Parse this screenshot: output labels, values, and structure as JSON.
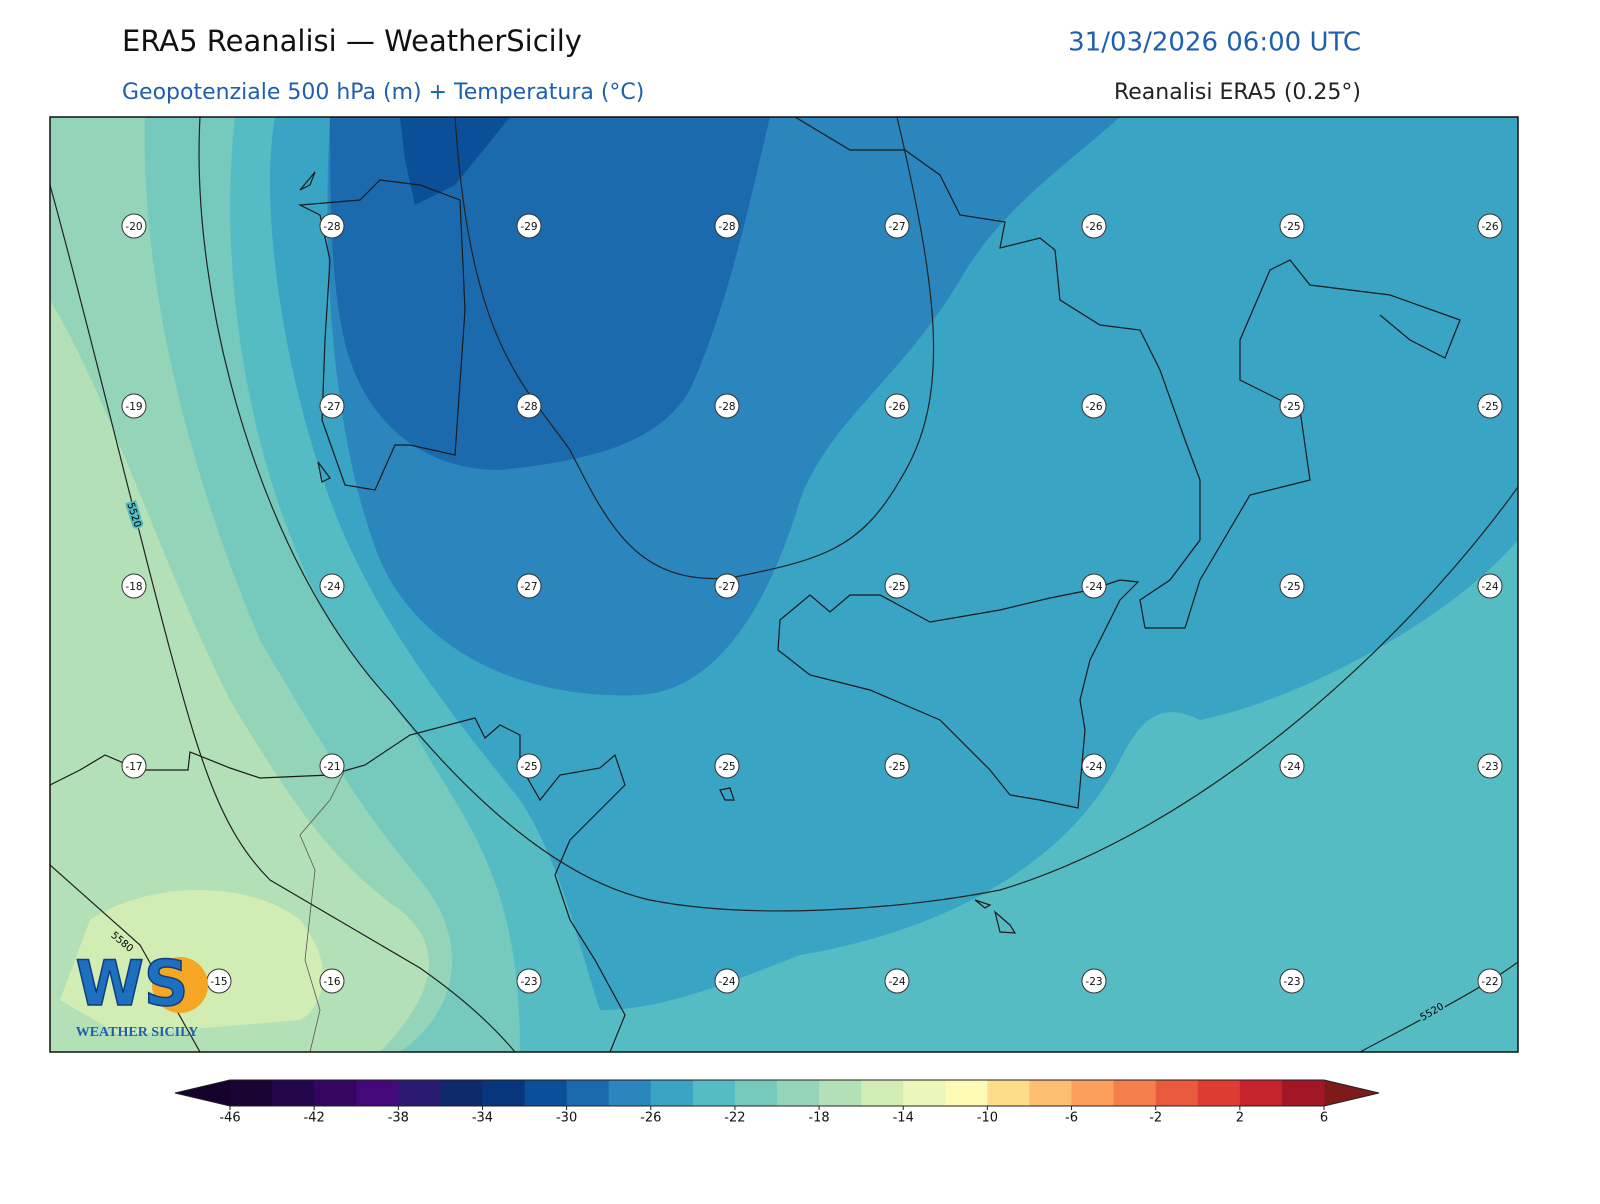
{
  "header": {
    "title": "ERA5 Reanalisi — WeatherSicily",
    "datetime": "31/03/2026 06:00 UTC",
    "subtitle": "Geopotenziale 500 hPa (m) + Temperatura (°C)",
    "source": "Reanalisi ERA5 (0.25°)"
  },
  "map": {
    "temperatures": [
      [
        -20,
        -28,
        -29,
        -28,
        -27,
        -26,
        -25,
        -26
      ],
      [
        -19,
        -27,
        -28,
        -28,
        -26,
        -26,
        -25,
        -25
      ],
      [
        -18,
        -24,
        -27,
        -27,
        -25,
        -24,
        -25,
        -24
      ],
      [
        -17,
        -21,
        -25,
        -25,
        -25,
        -24,
        -24,
        -23
      ],
      [
        -15,
        -16,
        -23,
        -24,
        -24,
        -23,
        -23,
        -22
      ]
    ],
    "contour_labels": [
      "5520",
      "5580",
      "5520"
    ]
  },
  "logo": {
    "initials": "WS",
    "name": "WEATHER SICILY"
  },
  "colorbar": {
    "range": [
      -46,
      6
    ],
    "ticks": [
      -46,
      -42,
      -38,
      -34,
      -30,
      -26,
      -22,
      -18,
      -14,
      -10,
      -6,
      -2,
      2,
      6
    ],
    "colors": [
      "#1a0433",
      "#24064a",
      "#34065f",
      "#44087a",
      "#2a1970",
      "#0f2a6b",
      "#08367d",
      "#0b4f99",
      "#1c6aae",
      "#2b86bd",
      "#39a4c4",
      "#56bcc4",
      "#76c9bd",
      "#94d5b9",
      "#b3e0b6",
      "#d1edb4",
      "#ebf6bb",
      "#fef9b5",
      "#fedd8a",
      "#fdbe6f",
      "#fb9f5b",
      "#f57f4c",
      "#ea5b3e",
      "#dd3c33",
      "#c5232b",
      "#a21626"
    ],
    "extend_colors": [
      "#14022a",
      "#7f1a1a"
    ]
  }
}
